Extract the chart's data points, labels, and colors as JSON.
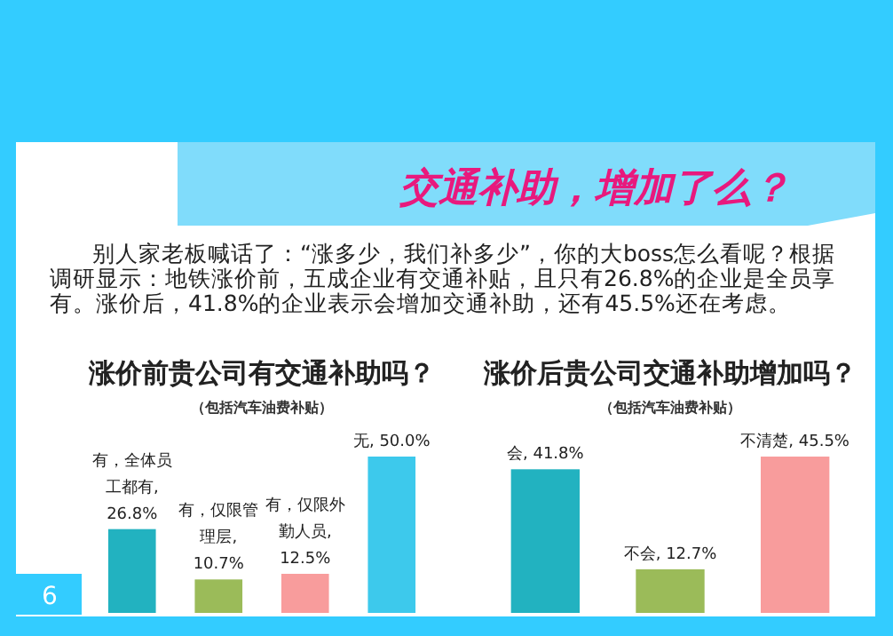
{
  "chart_data": [
    {
      "type": "other",
      "title": "交通补助，增加了么？",
      "annotations": [
        "别人家老板喊话了：“涨多少，我们补多少”，你的大boss怎么看呢？根据调研显示：地铁涨价前，五成企业有交通补贴，且只有26.8%的企业是全员享有。涨价后，41.8%的企业表示会增加交通补助，还有45.5%还在考虑。",
        "6"
      ]
    },
    {
      "type": "bar",
      "title": "涨价前贵公司有交通补助吗？",
      "subtitle": "（包括汽车油费补贴）",
      "categories": [
        null,
        null,
        null,
        null
      ],
      "values": [
        26.8,
        10.7,
        12.5,
        50.0
      ],
      "colors": [
        "#22b2c0",
        "#9bbb59",
        "#f89c9c",
        "#3dc9ec"
      ],
      "value_labels": [
        "有，全体员工都有, 26.8%",
        "有，仅限管理层, 10.7%",
        "有，仅限外勤人员, 12.5%",
        "无, 50.0%"
      ]
    },
    {
      "type": "bar",
      "title": "涨价后贵公司交通补助增加吗？",
      "subtitle": "（包括汽车油费补贴）",
      "categories": [
        null,
        null,
        null
      ],
      "values": [
        41.8,
        12.7,
        45.5
      ],
      "colors": [
        "#22b2c0",
        "#9bbb59",
        "#f89c9c"
      ],
      "value_labels": [
        "会, 41.8%",
        "不会, 12.7%",
        "不清楚, 45.5%"
      ]
    }
  ]
}
